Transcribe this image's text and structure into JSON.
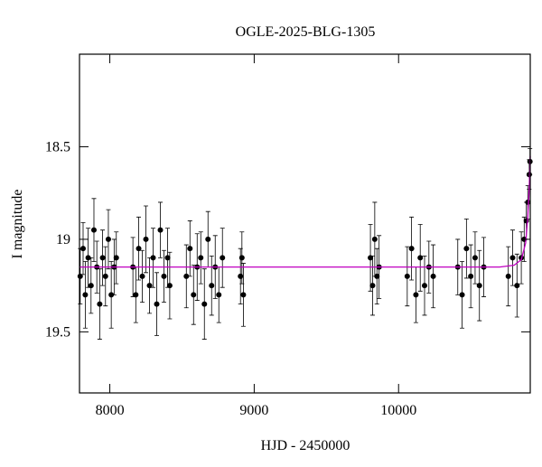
{
  "chart_data": {
    "type": "scatter",
    "title": "OGLE-2025-BLG-1305",
    "xlabel": "HJD - 2450000",
    "ylabel": "I magnitude",
    "xlim": [
      7790,
      10912
    ],
    "ylim": [
      19.83,
      18.0
    ],
    "xticks": [
      8000,
      9000,
      10000
    ],
    "yticks": [
      18.5,
      19,
      19.5
    ],
    "series": [
      {
        "type": "errorbar",
        "color": "#000000",
        "x": [
          7795,
          7815,
          7830,
          7850,
          7870,
          7890,
          7910,
          7930,
          7950,
          7970,
          7990,
          8010,
          8030,
          8045,
          8160,
          8180,
          8200,
          8225,
          8250,
          8275,
          8300,
          8325,
          8350,
          8375,
          8400,
          8415,
          8530,
          8555,
          8580,
          8605,
          8630,
          8655,
          8680,
          8705,
          8730,
          8755,
          8780,
          8905,
          8915,
          8925,
          9805,
          9820,
          9835,
          9850,
          9865,
          10060,
          10090,
          10120,
          10150,
          10180,
          10210,
          10240,
          10410,
          10440,
          10470,
          10500,
          10530,
          10560,
          10590,
          10760,
          10790,
          10820,
          10850,
          10870,
          10885,
          10895,
          10905,
          10910
        ],
        "values": [
          19.2,
          19.05,
          19.3,
          19.1,
          19.25,
          18.95,
          19.15,
          19.35,
          19.1,
          19.2,
          19.0,
          19.3,
          19.15,
          19.1,
          19.15,
          19.3,
          19.05,
          19.2,
          19.0,
          19.25,
          19.1,
          19.35,
          18.95,
          19.2,
          19.1,
          19.25,
          19.2,
          19.05,
          19.3,
          19.15,
          19.1,
          19.35,
          19.0,
          19.25,
          19.15,
          19.3,
          19.1,
          19.2,
          19.1,
          19.3,
          19.1,
          19.25,
          19.0,
          19.2,
          19.15,
          19.2,
          19.05,
          19.3,
          19.1,
          19.25,
          19.15,
          19.2,
          19.15,
          19.3,
          19.05,
          19.2,
          19.1,
          19.25,
          19.15,
          19.2,
          19.1,
          19.25,
          19.1,
          19.0,
          18.9,
          18.8,
          18.65,
          18.58
        ],
        "errors": [
          0.15,
          0.14,
          0.18,
          0.16,
          0.15,
          0.17,
          0.14,
          0.19,
          0.15,
          0.16,
          0.16,
          0.18,
          0.15,
          0.14,
          0.16,
          0.15,
          0.17,
          0.14,
          0.18,
          0.15,
          0.16,
          0.17,
          0.15,
          0.14,
          0.16,
          0.18,
          0.17,
          0.15,
          0.16,
          0.18,
          0.14,
          0.19,
          0.15,
          0.16,
          0.17,
          0.15,
          0.16,
          0.15,
          0.14,
          0.17,
          0.18,
          0.16,
          0.2,
          0.15,
          0.17,
          0.16,
          0.17,
          0.15,
          0.18,
          0.16,
          0.14,
          0.17,
          0.15,
          0.18,
          0.16,
          0.17,
          0.14,
          0.19,
          0.16,
          0.16,
          0.15,
          0.17,
          0.14,
          0.12,
          0.1,
          0.09,
          0.08,
          0.07
        ]
      },
      {
        "type": "line",
        "color": "#c000c0",
        "x": [
          7790,
          9000,
          10000,
          10700,
          10800,
          10850,
          10880,
          10895,
          10905,
          10912
        ],
        "values": [
          19.15,
          19.15,
          19.15,
          19.15,
          19.14,
          19.11,
          19.02,
          18.88,
          18.72,
          18.55
        ]
      }
    ]
  }
}
